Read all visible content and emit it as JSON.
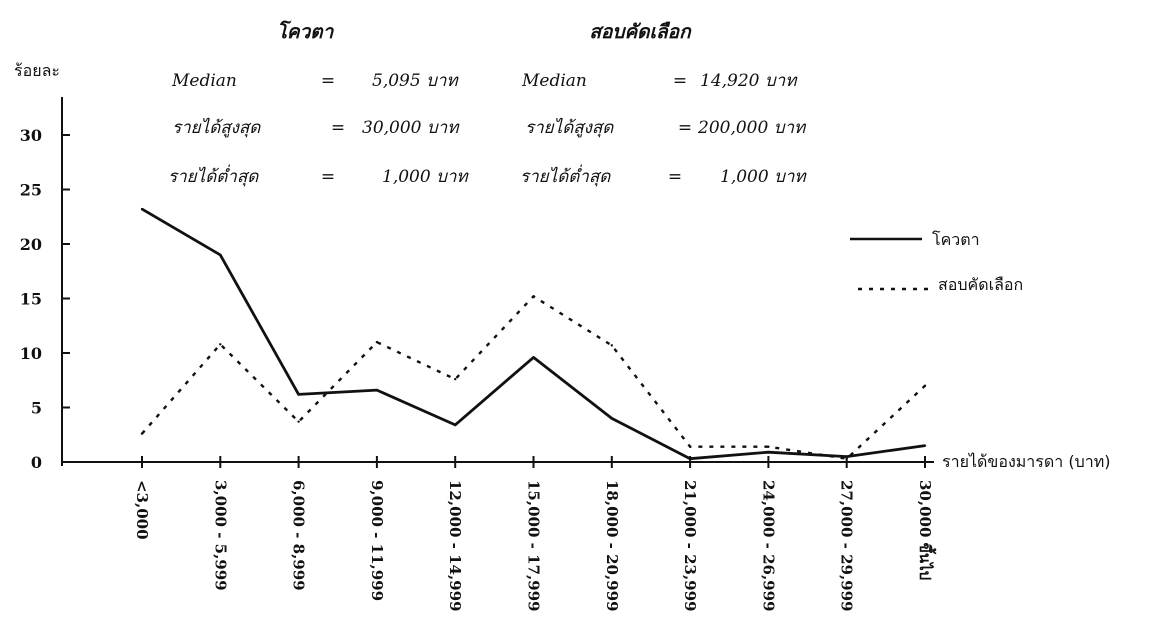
{
  "chart_data": {
    "type": "line",
    "ylabel": "ร้อยละ",
    "xlabel": "รายได้ของมารดา (บาท)",
    "ylim": [
      0,
      30
    ],
    "yticks": [
      0,
      5,
      10,
      15,
      20,
      25,
      30
    ],
    "grid": false,
    "legend_position": "right",
    "categories": [
      "<3,000",
      "3,000 - 5,999",
      "6,000 - 8,999",
      "9,000 - 11,999",
      "12,000 - 14,999",
      "15,000 - 17,999",
      "18,000 - 20,999",
      "21,000 - 23,999",
      "24,000 - 26,999",
      "27,000 - 29,999",
      "30,000 ขึ้นไป"
    ],
    "series": [
      {
        "name": "โควตา",
        "style": "solid",
        "values": [
          23.2,
          19.0,
          6.2,
          6.6,
          3.4,
          9.6,
          4.0,
          0.3,
          0.9,
          0.5,
          1.5
        ]
      },
      {
        "name": "สอบคัดเลือก",
        "style": "dotted",
        "values": [
          2.6,
          10.8,
          3.7,
          11.0,
          7.6,
          15.2,
          10.7,
          1.4,
          1.4,
          0.3,
          7.0
        ]
      }
    ],
    "annotations": {
      "groups": [
        {
          "heading": "โควตา",
          "rows": [
            {
              "label": "Median",
              "eq": "=",
              "value": "5,095 บาท"
            },
            {
              "label": "รายได้สูงสุด",
              "eq": "=",
              "value": "30,000 บาท"
            },
            {
              "label": "รายได้ต่ำสุด",
              "eq": "=",
              "value": "1,000 บาท"
            }
          ]
        },
        {
          "heading": "สอบคัดเลือก",
          "rows": [
            {
              "label": "Median",
              "eq": "=",
              "value": "14,920 บาท"
            },
            {
              "label": "รายได้สูงสุด",
              "eq": "=",
              "value": "200,000 บาท"
            },
            {
              "label": "รายได้ต่ำสุด",
              "eq": "=",
              "value": "1,000 บาท"
            }
          ]
        }
      ]
    }
  }
}
